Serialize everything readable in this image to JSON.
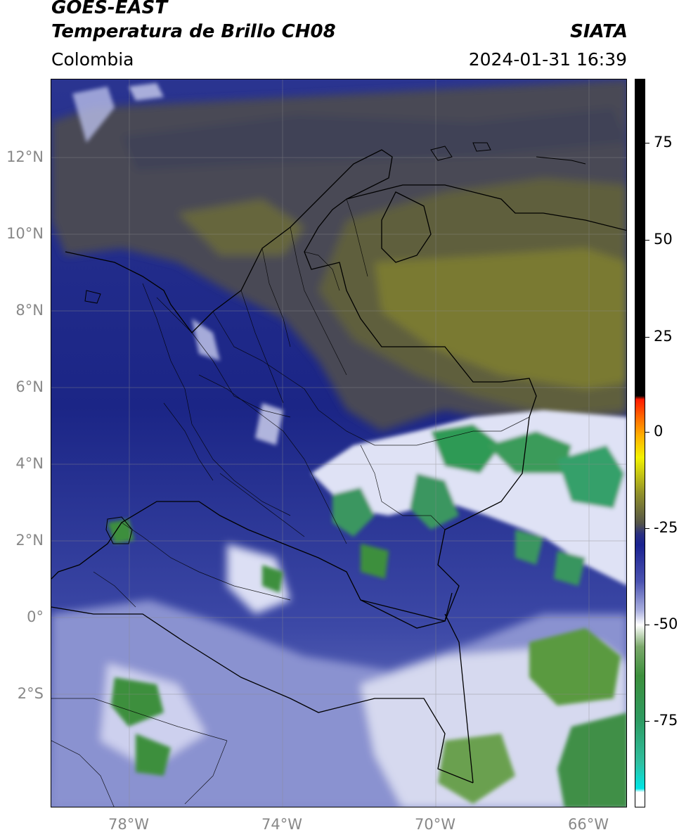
{
  "header": {
    "satellite": "GOES-EAST",
    "product": "Temperatura de Brillo CH08",
    "region": "Colombia",
    "brand": "SIATA",
    "timestamp": "2024-01-31 16:39"
  },
  "map": {
    "lat_labels": [
      "12°N",
      "10°N",
      "8°N",
      "6°N",
      "4°N",
      "2°N",
      "0°",
      "2°S"
    ],
    "lon_labels": [
      "78°W",
      "74°W",
      "70°W",
      "66°W"
    ],
    "colors": {
      "warm_olive": "#6f6f3a",
      "yellow_olive": "#9a9a2e",
      "gray_dark": "#4a4a55",
      "navy": "#1f2a8a",
      "deep_blue": "#141e78",
      "mid_blue": "#4450a8",
      "pale_blue": "#aeb4e0",
      "white": "#ffffff",
      "green": "#3c8f3c",
      "teal_green": "#2fa07a"
    }
  },
  "colorbar": {
    "labels": [
      "75",
      "50",
      "25",
      "0",
      "-25",
      "-50",
      "-75"
    ],
    "range": [
      -95,
      90
    ]
  }
}
